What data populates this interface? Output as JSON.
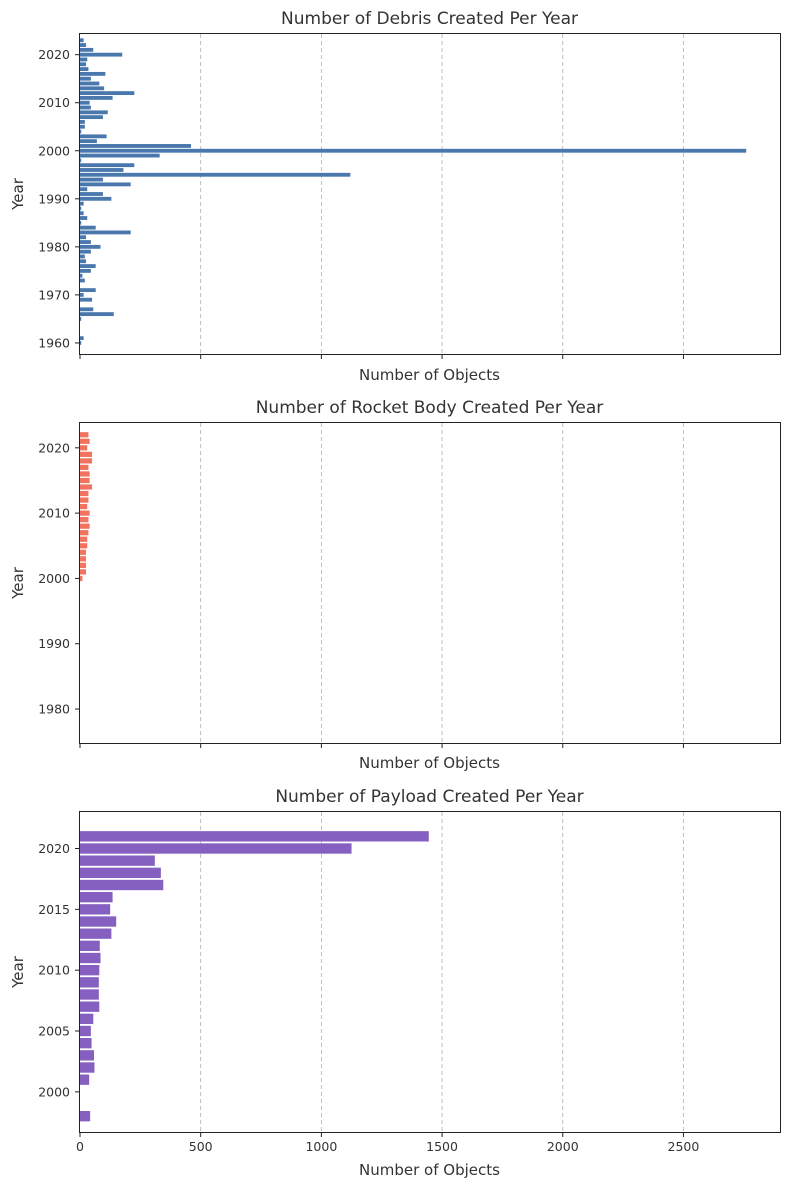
{
  "chart_data": [
    {
      "type": "bar",
      "orientation": "horizontal",
      "title": "Number of Debris Created Per Year",
      "xlabel": "Number of Objects",
      "ylabel": "Year",
      "xlim": [
        0,
        2900
      ],
      "ylim": [
        1957.7,
        2024.3
      ],
      "xticks": [
        0,
        500,
        1000,
        1500,
        2000,
        2500
      ],
      "xtick_labels_visible": false,
      "yticks": [
        1960,
        1970,
        1980,
        1990,
        2000,
        2010,
        2020
      ],
      "grid": "x-dashed",
      "color": "#4a78ad",
      "years": [
        1960,
        1961,
        1962,
        1963,
        1964,
        1965,
        1966,
        1967,
        1968,
        1969,
        1970,
        1971,
        1972,
        1973,
        1974,
        1975,
        1976,
        1977,
        1978,
        1979,
        1980,
        1981,
        1982,
        1983,
        1984,
        1985,
        1986,
        1987,
        1988,
        1989,
        1990,
        1991,
        1992,
        1993,
        1994,
        1995,
        1996,
        1997,
        1998,
        1999,
        2000,
        2001,
        2002,
        2003,
        2004,
        2005,
        2006,
        2007,
        2008,
        2009,
        2010,
        2011,
        2012,
        2013,
        2014,
        2015,
        2016,
        2017,
        2018,
        2019,
        2020,
        2021,
        2022,
        2023
      ],
      "values": [
        5,
        15,
        0,
        0,
        0,
        5,
        140,
        55,
        0,
        50,
        15,
        65,
        0,
        20,
        10,
        45,
        65,
        25,
        20,
        45,
        85,
        45,
        25,
        210,
        65,
        5,
        30,
        15,
        5,
        15,
        130,
        95,
        30,
        210,
        95,
        1120,
        180,
        225,
        5,
        330,
        2760,
        460,
        70,
        110,
        5,
        20,
        20,
        95,
        115,
        45,
        40,
        135,
        225,
        100,
        80,
        45,
        105,
        35,
        25,
        30,
        175,
        55,
        25,
        15
      ]
    },
    {
      "type": "bar",
      "orientation": "horizontal",
      "title": "Number of Rocket Body Created Per Year",
      "xlabel": "Number of Objects",
      "ylabel": "Year",
      "xlim": [
        0,
        2900
      ],
      "ylim": [
        1974.8,
        2023.8
      ],
      "xticks": [
        0,
        500,
        1000,
        1500,
        2000,
        2500
      ],
      "xtick_labels_visible": false,
      "yticks": [
        1980,
        1990,
        2000,
        2010,
        2020
      ],
      "grid": "x-dashed",
      "color": "#f27360",
      "years": [
        2000,
        2001,
        2002,
        2003,
        2004,
        2005,
        2006,
        2007,
        2008,
        2009,
        2010,
        2011,
        2012,
        2013,
        2014,
        2015,
        2016,
        2017,
        2018,
        2019,
        2020,
        2021,
        2022
      ],
      "values": [
        10,
        25,
        25,
        25,
        25,
        30,
        30,
        35,
        40,
        35,
        40,
        30,
        35,
        35,
        50,
        40,
        40,
        35,
        50,
        50,
        30,
        40,
        35
      ]
    },
    {
      "type": "bar",
      "orientation": "horizontal",
      "title": "Number of Payload Created Per Year",
      "xlabel": "Number of Objects",
      "ylabel": "Year",
      "xlim": [
        0,
        2900
      ],
      "ylim": [
        1996.7,
        2023.0
      ],
      "xticks": [
        0,
        500,
        1000,
        1500,
        2000,
        2500
      ],
      "xtick_labels_visible": true,
      "yticks": [
        2000,
        2005,
        2010,
        2015,
        2020
      ],
      "grid": "x-dashed",
      "color": "#8560c0",
      "years": [
        1998,
        2001,
        2002,
        2003,
        2004,
        2005,
        2006,
        2007,
        2008,
        2009,
        2010,
        2011,
        2012,
        2013,
        2014,
        2015,
        2016,
        2017,
        2018,
        2019,
        2020,
        2021
      ],
      "values": [
        42,
        38,
        60,
        58,
        48,
        45,
        55,
        80,
        78,
        78,
        80,
        85,
        82,
        130,
        150,
        125,
        135,
        345,
        335,
        310,
        1125,
        1445
      ]
    }
  ]
}
